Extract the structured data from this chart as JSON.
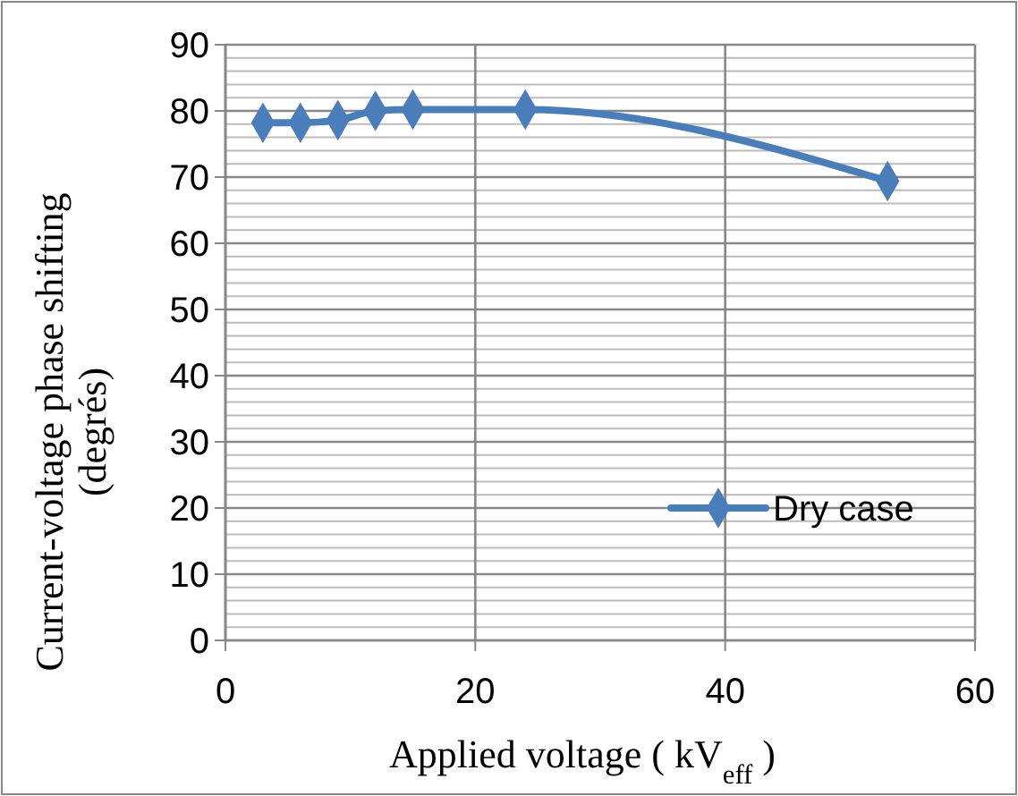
{
  "chart_data": {
    "type": "line",
    "xlabel": "Applied voltage ( kV$_{eff}$ )",
    "ylabel": "Current-voltage phase shifting\n(degrés)",
    "x": [
      3,
      6,
      9,
      12,
      15,
      24,
      53
    ],
    "series": [
      {
        "name": "Dry case",
        "color": "#4a7ebb",
        "values": [
          78.2,
          78.2,
          78.6,
          80,
          80.2,
          80.2,
          69.4
        ]
      }
    ],
    "xlim": [
      0,
      60
    ],
    "xticks": [
      0,
      20,
      40,
      60
    ],
    "ylim": [
      0,
      90
    ],
    "yticks": [
      0,
      10,
      20,
      30,
      40,
      50,
      60,
      70,
      80,
      90
    ],
    "grid": true,
    "legend": "right",
    "marker": "diamond",
    "line_style": "solid"
  }
}
